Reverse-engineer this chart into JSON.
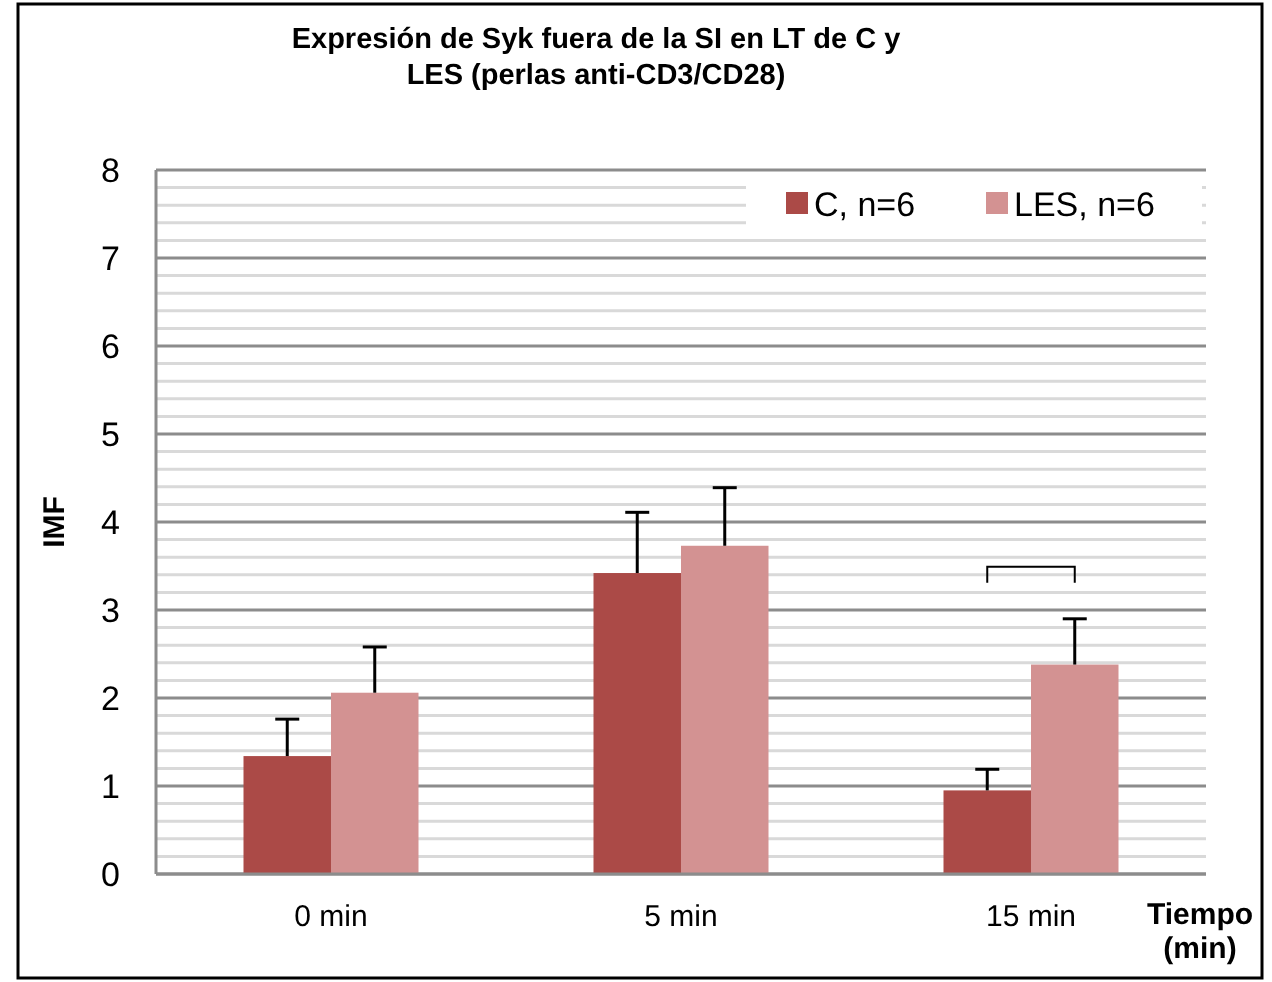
{
  "chart_data": {
    "type": "bar",
    "title": "Expresión de Syk fuera de la SI en LT de C y\nLES  (perlas anti-CD3/CD28)",
    "xlabel": "Tiempo\n(min)",
    "ylabel": "IMF",
    "categories": [
      "0 min",
      "5 min",
      "15 min"
    ],
    "series": [
      {
        "name": "C, n=6",
        "color": "#ab4a47",
        "values": [
          1.34,
          3.42,
          0.95
        ],
        "errors": [
          [
            1.34,
            1.76
          ],
          [
            3.42,
            4.11
          ],
          [
            0.95,
            1.19
          ]
        ]
      },
      {
        "name": "LES, n=6",
        "color": "#d39292",
        "values": [
          2.06,
          3.73,
          2.38
        ],
        "errors": [
          [
            2.06,
            2.58
          ],
          [
            3.73,
            4.39
          ],
          [
            2.38,
            2.9
          ]
        ]
      }
    ],
    "ylim": [
      0,
      8
    ],
    "yticks": [
      0,
      {
        "value": 0.2,
        "label": null
      },
      {
        "value": 0.4,
        "label": null
      },
      {
        "value": 0.6,
        "label": null
      },
      {
        "value": 0.8,
        "label": null
      },
      1,
      {
        "value": 1.2,
        "label": null
      },
      {
        "value": 1.4,
        "label": null
      },
      {
        "value": 1.6,
        "label": null
      },
      {
        "value": 1.8,
        "label": null
      },
      2,
      {
        "value": 2.2,
        "label": null
      },
      {
        "value": 2.4,
        "label": null
      },
      {
        "value": 2.6,
        "label": null
      },
      {
        "value": 2.8,
        "label": null
      },
      3,
      {
        "value": 3.2,
        "label": null
      },
      {
        "value": 3.4,
        "label": null
      },
      {
        "value": 3.6,
        "label": null
      },
      {
        "value": 3.8,
        "label": null
      },
      4,
      {
        "value": 4.2,
        "label": null
      },
      {
        "value": 4.4,
        "label": null
      },
      {
        "value": 4.6,
        "label": null
      },
      {
        "value": 4.8,
        "label": null
      },
      5,
      {
        "value": 5.2,
        "label": null
      },
      {
        "value": 5.4,
        "label": null
      },
      {
        "value": 5.6,
        "label": null
      },
      {
        "value": 5.8,
        "label": null
      },
      6,
      {
        "value": 6.2,
        "label": null
      },
      {
        "value": 6.4,
        "label": null
      },
      {
        "value": 6.6,
        "label": null
      },
      {
        "value": 6.8,
        "label": null
      },
      7,
      {
        "value": 7.2,
        "label": null
      },
      {
        "value": 7.4,
        "label": null
      },
      {
        "value": 7.6,
        "label": null
      },
      {
        "value": 7.8,
        "label": null
      },
      8
    ],
    "grid": "y",
    "legend": "top right"
  }
}
